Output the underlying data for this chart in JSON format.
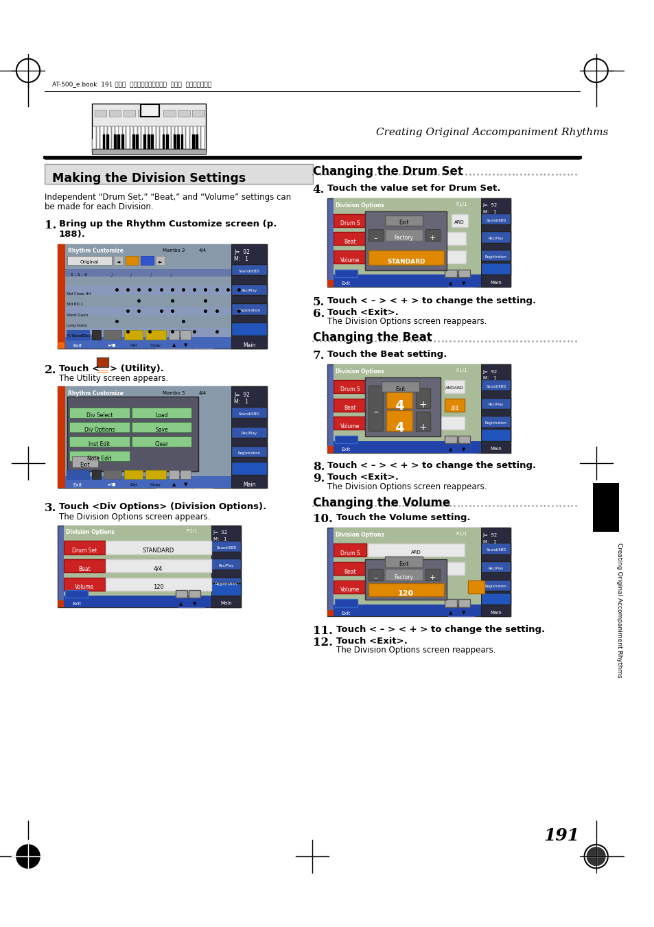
{
  "page_width": 9.54,
  "page_height": 13.51,
  "bg_color": "#ffffff",
  "header_text": "AT-500_e.book  191 ページ  ２００８年７月２８日  月曜日  午後４時１７分",
  "subtitle_right": "Creating Original Accompaniment Rhythms",
  "page_number": "191",
  "section_title": "Making the Division Settings",
  "section_desc1": "Independent “Drum Set,” “Beat,” and “Volume” settings can",
  "section_desc2": "be made for each Division.",
  "ch_drum_title": "Changing the Drum Set",
  "ch_beat_title": "Changing the Beat",
  "ch_vol_title": "Changing the Volume",
  "side_text": "Creating Original Accompaniment Rhythms",
  "blue_dark": "#2244aa",
  "blue_medium": "#3355bb",
  "blue_screen": "#4466cc",
  "red_header": "#cc2200",
  "red_label": "#cc2222",
  "orange_active": "#e08800",
  "green_menu": "#88cc88",
  "gray_content": "#aabb99",
  "gray_jm": "#1a1a2e",
  "gray_dark": "#555555",
  "gray_medium": "#888888",
  "gray_light": "#cccccc",
  "gray_popup": "#777777",
  "dotted_color": "#999999"
}
